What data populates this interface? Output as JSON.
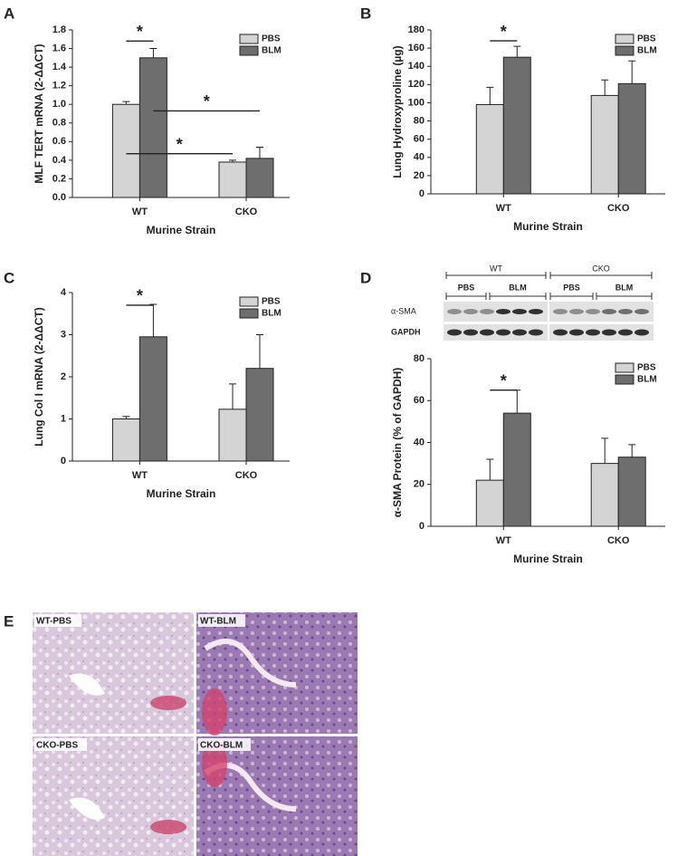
{
  "chart_data": [
    {
      "type": "bar",
      "panel": "A",
      "y_label": "MLF TERT mRNA (2-ΔΔCT)",
      "x_label": "Murine Strain",
      "categories": [
        "WT",
        "CKO"
      ],
      "series": [
        {
          "name": "PBS",
          "color": "#d4d4d4",
          "values": [
            1.0,
            0.38
          ],
          "errors": [
            0.03,
            0.02
          ]
        },
        {
          "name": "BLM",
          "color": "#6e6e6e",
          "values": [
            1.5,
            0.42
          ],
          "errors": [
            0.1,
            0.12
          ]
        }
      ],
      "ylim": [
        0,
        1.8
      ],
      "yticks": [
        {
          "value": 0,
          "label": "0.0"
        },
        0.2,
        0.4,
        0.6,
        0.8,
        {
          "value": 1,
          "label": "1.0"
        },
        1.2,
        1.4,
        1.6,
        1.8
      ],
      "legend": "upper right",
      "annotations": [
        "*",
        "*",
        "*"
      ]
    },
    {
      "type": "bar",
      "panel": "B",
      "y_label": "Lung Hydroxyproline (µg)",
      "x_label": "Murine Strain",
      "categories": [
        "WT",
        "CKO"
      ],
      "series": [
        {
          "name": "PBS",
          "color": "#d4d4d4",
          "values": [
            98,
            108
          ],
          "errors": [
            19,
            17
          ]
        },
        {
          "name": "BLM",
          "color": "#6e6e6e",
          "values": [
            150,
            121
          ],
          "errors": [
            12,
            25
          ]
        }
      ],
      "ylim": [
        0,
        180
      ],
      "yticks": [
        0,
        20,
        40,
        60,
        80,
        100,
        120,
        140,
        160,
        180
      ],
      "legend": "upper right",
      "annotations": [
        "*"
      ]
    },
    {
      "type": "bar",
      "panel": "C",
      "y_label": "Lung Col I mRNA (2-ΔΔCT)",
      "x_label": "Murine Strain",
      "categories": [
        "WT",
        "CKO"
      ],
      "series": [
        {
          "name": "PBS",
          "color": "#d4d4d4",
          "values": [
            1.0,
            1.23
          ],
          "errors": [
            0.06,
            0.6
          ]
        },
        {
          "name": "BLM",
          "color": "#6e6e6e",
          "values": [
            2.95,
            2.2
          ],
          "errors": [
            0.77,
            0.8
          ]
        }
      ],
      "ylim": [
        0,
        4
      ],
      "yticks": [
        0,
        1,
        2,
        3,
        4
      ],
      "legend": "upper right",
      "annotations": [
        "*"
      ]
    },
    {
      "type": "bar",
      "panel": "D",
      "y_label": "α-SMA Protein (% of GAPDH)",
      "x_label": "Murine Strain",
      "categories": [
        "WT",
        "CKO"
      ],
      "series": [
        {
          "name": "PBS",
          "color": "#d4d4d4",
          "values": [
            22,
            30
          ],
          "errors": [
            10,
            12
          ]
        },
        {
          "name": "BLM",
          "color": "#6e6e6e",
          "values": [
            54,
            33
          ],
          "errors": [
            11,
            6
          ]
        }
      ],
      "ylim": [
        0,
        80
      ],
      "yticks": [
        0,
        20,
        40,
        60,
        80
      ],
      "legend": "upper right",
      "annotations": [
        "*"
      ]
    }
  ],
  "blot": {
    "groups": [
      "WT",
      "CKO"
    ],
    "treatments": [
      "PBS",
      "BLM",
      "PBS",
      "BLM"
    ],
    "rows": [
      "α-SMA",
      "GAPDH"
    ]
  },
  "histology": {
    "panel": "E",
    "images": [
      "WT-PBS",
      "WT-BLM",
      "CKO-PBS",
      "CKO-BLM"
    ]
  }
}
